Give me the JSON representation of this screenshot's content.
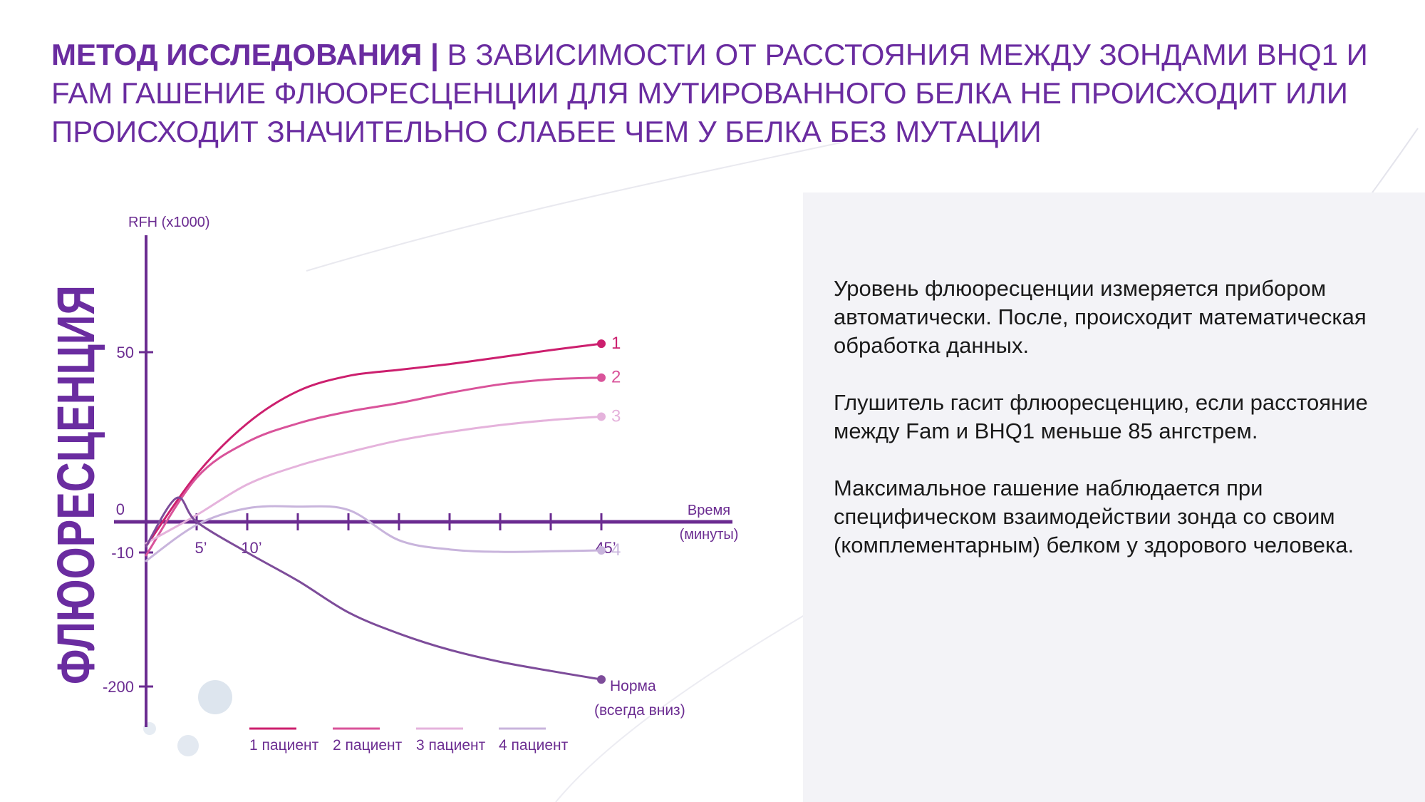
{
  "header": {
    "title_bold": "МЕТОД ИССЛЕДОВАНИЯ |",
    "title_rest": " В ЗАВИСИМОСТИ ОТ РАССТОЯНИЯ МЕЖДУ ЗОНДАМИ BHQ1 И FAM ГАШЕНИЕ ФЛЮОРЕСЦЕНЦИИ ДЛЯ МУТИРОВАННОГО БЕЛКА НЕ ПРОИСХОДИТ ИЛИ ПРОИСХОДИТ ЗНАЧИТЕЛЬНО СЛАБЕЕ ЧЕМ У БЕЛКА БЕЗ МУТАЦИИ"
  },
  "panel": {
    "paragraphs": [
      "Уровень флюоресценции измеряется прибором автоматически. После, происходит математическая обработка данных.",
      "Глушитель гасит флюоресценцию, если расстояние между Fam и BHQ1 меньше 85 ангстрем.",
      "Максимальное гашение наблюдается при специфическом взаимодействии зонда со своим (комплементарным) белком у здорового человека."
    ]
  },
  "colors": {
    "title": "#6a2ca0",
    "axis": "#6b2c91",
    "vertical_label": "#6a2ca0",
    "series1": "#cc1f6e",
    "series2": "#d9539a",
    "series3": "#e5b3dc",
    "series4": "#c8b4dc",
    "norma": "#7d4c9a"
  },
  "chart_data": {
    "type": "line",
    "vertical_label": "ФЛЮОРЕСЦЕНЦИЯ",
    "ylabel": "RFH (x1000)",
    "xlabel_lines": [
      "Время",
      "(минуты)"
    ],
    "y_ticks": [
      {
        "value": 50,
        "label": "50"
      },
      {
        "value": 0,
        "label": "0"
      },
      {
        "value": -10,
        "label": "-10"
      },
      {
        "value": -200,
        "label": "-200"
      }
    ],
    "x_tick_labels": [
      {
        "value": 5,
        "label": "5’"
      },
      {
        "value": 10,
        "label": "10’"
      },
      {
        "value": 45,
        "label": "45’"
      }
    ],
    "x_tick_marks": [
      5,
      10,
      15,
      20,
      25,
      30,
      35,
      40,
      45
    ],
    "series": [
      {
        "key": "series1",
        "name": "1",
        "legend": "1 пациент",
        "x": [
          0,
          5,
          10,
          15,
          20,
          25,
          30,
          35,
          40,
          45
        ],
        "y": [
          -8,
          14,
          29,
          38.5,
          43,
          44.8,
          46.5,
          48.5,
          50.6,
          52.5
        ]
      },
      {
        "key": "series2",
        "name": "2",
        "legend": "2 пациент",
        "x": [
          0,
          5,
          10,
          15,
          20,
          25,
          30,
          35,
          40,
          45
        ],
        "y": [
          -14,
          13,
          23.5,
          29,
          32.5,
          35,
          38,
          40.5,
          42,
          42.5
        ]
      },
      {
        "key": "series3",
        "name": "3",
        "legend": "3 пациент",
        "x": [
          0,
          5,
          10,
          15,
          20,
          25,
          30,
          35,
          40,
          45
        ],
        "y": [
          -7,
          2,
          11,
          16.5,
          20.5,
          24,
          26.5,
          28.5,
          30,
          31
        ]
      },
      {
        "key": "series4",
        "name": "4",
        "legend": "4 пациент",
        "x": [
          0,
          5,
          10,
          15,
          20,
          25,
          30,
          35,
          40,
          45
        ],
        "y": [
          -22,
          -1,
          4,
          4.5,
          3.5,
          -6,
          -9,
          -9.8,
          -9.6,
          -9.3
        ]
      },
      {
        "key": "norma",
        "name_lines": [
          "Норма",
          "(всегда вниз)"
        ],
        "x": [
          0,
          3,
          5,
          10,
          15,
          20,
          25,
          30,
          35,
          40,
          45
        ],
        "y": [
          -8,
          7,
          0,
          -10,
          -50,
          -95,
          -125,
          -148,
          -165,
          -178,
          -190
        ]
      }
    ]
  }
}
